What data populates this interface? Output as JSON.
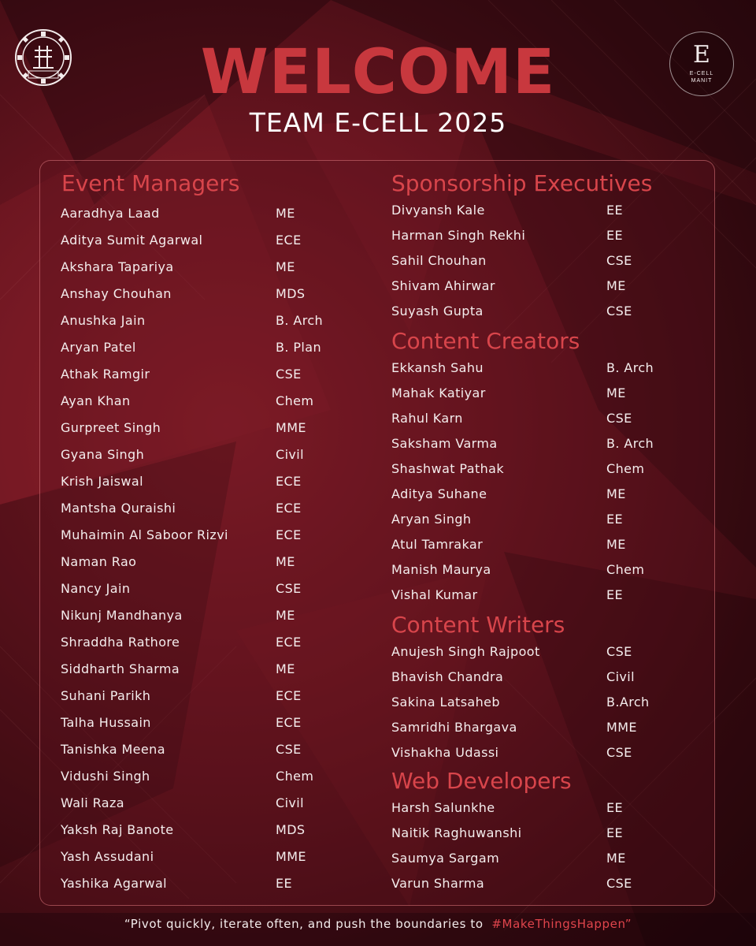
{
  "header": {
    "welcome": "WELCOME",
    "team": "TEAM E-CELL 2025",
    "right_logo": {
      "letter": "E",
      "line1": "E-CELL",
      "line2": "MANIT"
    },
    "left_logo_icon": "institute-emblem-icon"
  },
  "left_column": [
    {
      "title": "Event Managers",
      "members": [
        {
          "name": "Aaradhya Laad",
          "branch": "ME"
        },
        {
          "name": "Aditya Sumit Agarwal",
          "branch": "ECE"
        },
        {
          "name": "Akshara Tapariya",
          "branch": "ME"
        },
        {
          "name": "Anshay Chouhan",
          "branch": "MDS"
        },
        {
          "name": "Anushka Jain",
          "branch": "B. Arch"
        },
        {
          "name": "Aryan Patel",
          "branch": "B. Plan"
        },
        {
          "name": "Athak Ramgir",
          "branch": "CSE"
        },
        {
          "name": "Ayan Khan",
          "branch": "Chem"
        },
        {
          "name": "Gurpreet Singh",
          "branch": "MME"
        },
        {
          "name": "Gyana Singh",
          "branch": "Civil"
        },
        {
          "name": "Krish Jaiswal",
          "branch": "ECE"
        },
        {
          "name": "Mantsha Quraishi",
          "branch": "ECE"
        },
        {
          "name": "Muhaimin Al Saboor Rizvi",
          "branch": "ECE"
        },
        {
          "name": "Naman Rao",
          "branch": "ME"
        },
        {
          "name": "Nancy Jain",
          "branch": "CSE"
        },
        {
          "name": "Nikunj Mandhanya",
          "branch": "ME"
        },
        {
          "name": "Shraddha Rathore",
          "branch": "ECE"
        },
        {
          "name": "Siddharth Sharma",
          "branch": "ME"
        },
        {
          "name": "Suhani Parikh",
          "branch": "ECE"
        },
        {
          "name": "Talha Hussain",
          "branch": "ECE"
        },
        {
          "name": "Tanishka Meena",
          "branch": "CSE"
        },
        {
          "name": "Vidushi Singh",
          "branch": "Chem"
        },
        {
          "name": "Wali Raza",
          "branch": "Civil"
        },
        {
          "name": "Yaksh Raj Banote",
          "branch": "MDS"
        },
        {
          "name": "Yash Assudani",
          "branch": "MME"
        },
        {
          "name": "Yashika Agarwal",
          "branch": "EE"
        }
      ]
    }
  ],
  "right_column": [
    {
      "title": "Sponsorship Executives",
      "members": [
        {
          "name": "Divyansh Kale",
          "branch": "EE"
        },
        {
          "name": "Harman Singh Rekhi",
          "branch": "EE"
        },
        {
          "name": "Sahil Chouhan",
          "branch": "CSE"
        },
        {
          "name": "Shivam Ahirwar",
          "branch": "ME"
        },
        {
          "name": "Suyash Gupta",
          "branch": "CSE"
        }
      ]
    },
    {
      "title": "Content Creators",
      "members": [
        {
          "name": "Ekkansh Sahu",
          "branch": "B. Arch"
        },
        {
          "name": "Mahak Katiyar",
          "branch": "ME"
        },
        {
          "name": "Rahul Karn",
          "branch": "CSE"
        },
        {
          "name": "Saksham Varma",
          "branch": "B. Arch"
        },
        {
          "name": "Shashwat Pathak",
          "branch": "Chem"
        },
        {
          "name": "Aditya Suhane",
          "branch": "ME"
        },
        {
          "name": "Aryan Singh",
          "branch": "EE"
        },
        {
          "name": "Atul Tamrakar",
          "branch": "ME"
        },
        {
          "name": "Manish Maurya",
          "branch": "Chem"
        },
        {
          "name": "Vishal Kumar",
          "branch": "EE"
        }
      ]
    },
    {
      "title": "Content Writers",
      "members": [
        {
          "name": "Anujesh Singh Rajpoot",
          "branch": "CSE"
        },
        {
          "name": "Bhavish Chandra",
          "branch": "Civil"
        },
        {
          "name": "Sakina Latsaheb",
          "branch": "B.Arch"
        },
        {
          "name": "Samridhi Bhargava",
          "branch": "MME"
        },
        {
          "name": "Vishakha Udassi",
          "branch": "CSE"
        }
      ]
    },
    {
      "title": "Web Developers",
      "members": [
        {
          "name": "Harsh Salunkhe",
          "branch": "EE"
        },
        {
          "name": "Naitik Raghuwanshi",
          "branch": "EE"
        },
        {
          "name": "Saumya Sargam",
          "branch": "ME"
        },
        {
          "name": "Varun Sharma",
          "branch": "CSE"
        }
      ]
    }
  ],
  "footer": {
    "quote": "“Pivot quickly, iterate often, and push the boundaries to",
    "hashtag": "#MakeThingsHappen”"
  },
  "colors": {
    "accent": "#c8383e",
    "section_title": "#d8454b",
    "text": "#f4eded"
  }
}
